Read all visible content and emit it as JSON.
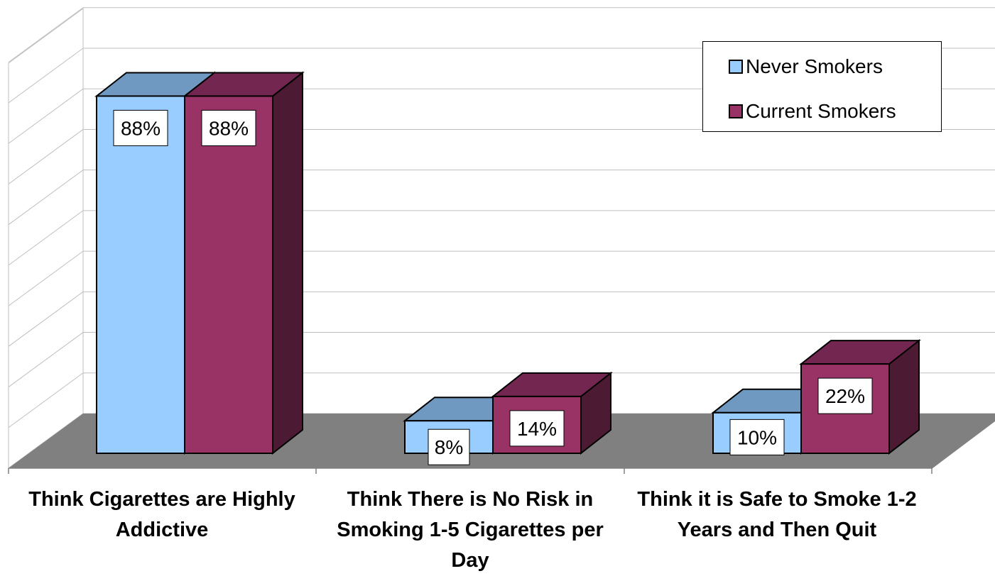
{
  "chart_data": {
    "type": "bar",
    "title": "",
    "xlabel": "",
    "ylabel": "",
    "ylim": [
      0,
      100
    ],
    "categories": [
      "Think Cigarettes are Highly Addictive",
      "Think There is No Risk in Smoking 1-5 Cigarettes per Day",
      "Think it is Safe to Smoke 1-2 Years and Then Quit"
    ],
    "series": [
      {
        "name": "Never Smokers",
        "values": [
          88,
          8,
          10
        ],
        "labels": [
          "88%",
          "8%",
          "10%"
        ]
      },
      {
        "name": "Current Smokers",
        "values": [
          88,
          14,
          22
        ],
        "labels": [
          "88%",
          "14%",
          "22%"
        ]
      }
    ],
    "legend_position": "top-right",
    "grid": true,
    "colors": {
      "never_front": "#99ccff",
      "never_top": "#6f99c0",
      "current_front": "#993366",
      "current_top": "#732750",
      "current_side": "#4d1a33",
      "floor": "#808080",
      "grid": "#bfbfbf"
    }
  }
}
